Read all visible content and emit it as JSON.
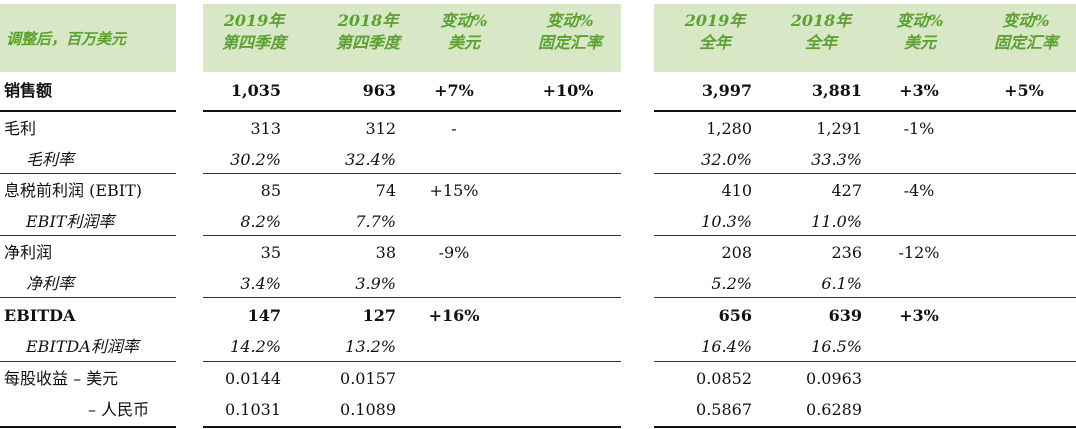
{
  "header": {
    "title": "调整后，百万美元",
    "cols": [
      {
        "line1": "2019年",
        "line2": "第四季度"
      },
      {
        "line1": "2018年",
        "line2": "第四季度"
      },
      {
        "line1": "变动%",
        "line2": "美元"
      },
      {
        "line1": "变动%",
        "line2": "固定汇率"
      },
      {
        "line1": "2019年",
        "line2": "全年"
      },
      {
        "line1": "2018年",
        "line2": "全年"
      },
      {
        "line1": "变动%",
        "line2": "美元"
      },
      {
        "line1": "变动%",
        "line2": "固定汇率"
      }
    ]
  },
  "rows": [
    {
      "label": "销售额",
      "style": "bold",
      "values": [
        "1,035",
        "963",
        "+7%",
        "+10%",
        "3,997",
        "3,881",
        "+3%",
        "+5%"
      ]
    },
    {
      "label": "毛利",
      "style": "normal",
      "values": [
        "313",
        "312",
        "-",
        "",
        "1,280",
        "1,291",
        "-1%",
        ""
      ]
    },
    {
      "label": "毛利率",
      "style": "italic",
      "values": [
        "30.2%",
        "32.4%",
        "",
        "",
        "32.0%",
        "33.3%",
        "",
        ""
      ]
    },
    {
      "label": "息税前利润 (EBIT)",
      "style": "normal",
      "values": [
        "85",
        "74",
        "+15%",
        "",
        "410",
        "427",
        "-4%",
        ""
      ]
    },
    {
      "label": "EBIT利润率",
      "style": "italic",
      "values": [
        "8.2%",
        "7.7%",
        "",
        "",
        "10.3%",
        "11.0%",
        "",
        ""
      ]
    },
    {
      "label": "净利润",
      "style": "normal",
      "values": [
        "35",
        "38",
        "-9%",
        "",
        "208",
        "236",
        "-12%",
        ""
      ]
    },
    {
      "label": "净利率",
      "style": "italic",
      "values": [
        "3.4%",
        "3.9%",
        "",
        "",
        "5.2%",
        "6.1%",
        "",
        ""
      ]
    },
    {
      "label": "EBITDA",
      "style": "bold",
      "values": [
        "147",
        "127",
        "+16%",
        "",
        "656",
        "639",
        "+3%",
        ""
      ]
    },
    {
      "label": "EBITDA利润率",
      "style": "italic",
      "values": [
        "14.2%",
        "13.2%",
        "",
        "",
        "16.4%",
        "16.5%",
        "",
        ""
      ]
    },
    {
      "label": "每股收益 – 美元",
      "style": "normal",
      "values": [
        "0.0144",
        "0.0157",
        "",
        "",
        "0.0852",
        "0.0963",
        "",
        ""
      ]
    },
    {
      "label": "– 人民币",
      "style": "normal",
      "values": [
        "0.1031",
        "0.1089",
        "",
        "",
        "0.5867",
        "0.6289",
        "",
        ""
      ]
    }
  ]
}
